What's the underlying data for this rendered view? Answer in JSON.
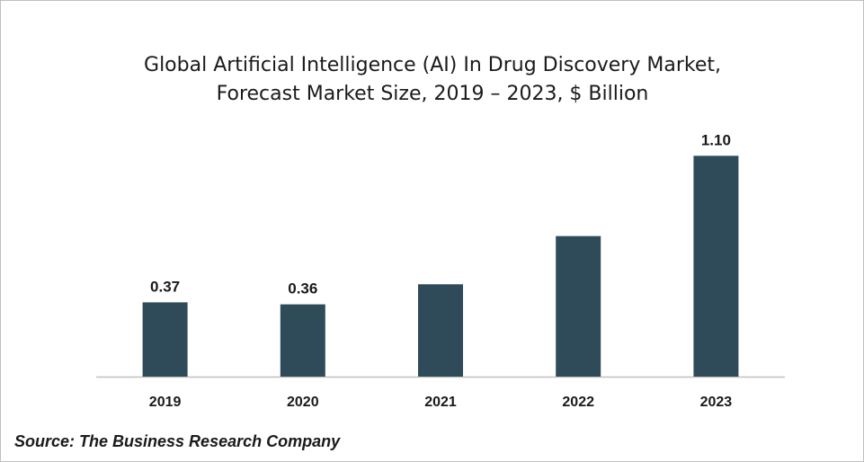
{
  "chart_data": {
    "type": "bar",
    "title_lines": [
      "Global Artificial Intelligence (AI) In Drug Discovery Market,",
      "Forecast Market Size, 2019 – 2023, $ Billion"
    ],
    "categories": [
      "2019",
      "2020",
      "2021",
      "2022",
      "2023"
    ],
    "values": [
      0.37,
      0.36,
      0.46,
      0.7,
      1.1
    ],
    "data_labels": [
      "0.37",
      "0.36",
      "",
      "",
      "1.10"
    ],
    "xlabel": "",
    "ylabel": "",
    "ylim": [
      0,
      1.2
    ],
    "grid": false,
    "legend": "none",
    "bar_color": "#2f4b5a",
    "axis_color": "#bfbfbf"
  },
  "source": "Source: The Business Research Company"
}
